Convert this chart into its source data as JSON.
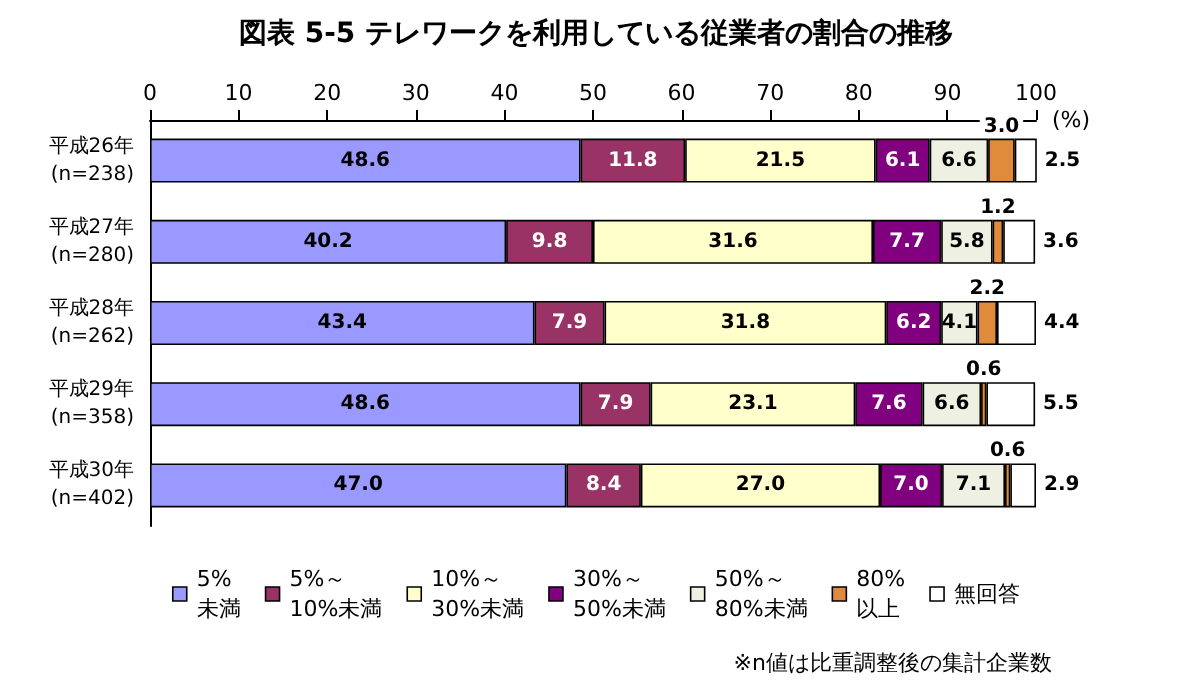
{
  "chart_data": {
    "type": "bar",
    "orientation": "horizontal",
    "stacked": true,
    "title": "図表 5-5 テレワークを利用している従業者の割合の推移",
    "xlabel": "(%)",
    "categories": [
      "平成26年\n(n=238)",
      "平成27年\n(n=280)",
      "平成28年\n(n=262)",
      "平成29年\n(n=358)",
      "平成30年\n(n=402)"
    ],
    "series": [
      {
        "name": "5%\n未満",
        "color": "#9999ff",
        "values": [
          48.6,
          40.2,
          43.4,
          48.6,
          47.0
        ],
        "value_labels": [
          "48.6",
          "40.2",
          "43.4",
          "48.6",
          "47.0"
        ]
      },
      {
        "name": "5%～\n10%未満",
        "color": "#993366",
        "values": [
          11.8,
          9.8,
          7.9,
          7.9,
          8.4
        ],
        "value_labels": [
          "11.8",
          "9.8",
          "7.9",
          "7.9",
          "8.4"
        ]
      },
      {
        "name": "10%～\n30%未満",
        "color": "#ffffcc",
        "values": [
          21.5,
          31.6,
          31.8,
          23.1,
          27.0
        ],
        "value_labels": [
          "21.5",
          "31.6",
          "31.8",
          "23.1",
          "27.0"
        ]
      },
      {
        "name": "30%～\n50%未満",
        "color": "#800080",
        "values": [
          6.1,
          7.7,
          6.2,
          7.6,
          7.0
        ],
        "value_labels": [
          "6.1",
          "7.7",
          "6.2",
          "7.6",
          "7.0"
        ]
      },
      {
        "name": "50%～\n80%未満",
        "color": "#eef0e2",
        "values": [
          6.6,
          5.8,
          4.1,
          6.6,
          7.1
        ],
        "value_labels": [
          "6.6",
          "5.8",
          "4.1",
          "6.6",
          "7.1"
        ]
      },
      {
        "name": "80%\n以上",
        "color": "#e08a3c",
        "values": [
          3.0,
          1.2,
          2.2,
          0.6,
          0.6
        ],
        "value_labels": [
          "3.0",
          "1.2",
          "2.2",
          "0.6",
          "0.6"
        ]
      },
      {
        "name": "無回答",
        "color": "#ffffff",
        "values": [
          2.5,
          3.6,
          4.4,
          5.5,
          2.9
        ],
        "value_labels": [
          "2.5",
          "3.6",
          "4.4",
          "5.5",
          "2.9"
        ]
      }
    ],
    "xlim": [
      0,
      100
    ],
    "xticks": [
      0,
      10,
      20,
      30,
      40,
      50,
      60,
      70,
      80,
      90,
      100
    ],
    "legend": "bottom",
    "grid": false,
    "annotations": [
      "※n値は比重調整後の集計企業数"
    ]
  }
}
